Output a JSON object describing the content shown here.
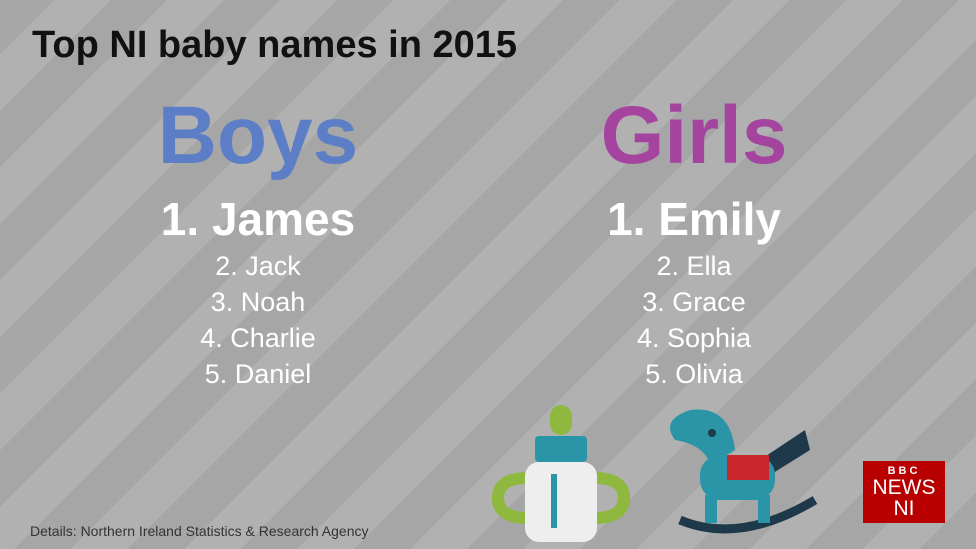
{
  "title": "Top NI baby names in 2015",
  "columns": [
    {
      "heading": "Boys",
      "names": [
        "1. James",
        "2. Jack",
        "3. Noah",
        "4. Charlie",
        "5. Daniel"
      ]
    },
    {
      "heading": "Girls",
      "names": [
        "1. Emily",
        "2. Ella",
        "3. Grace",
        "4. Sophia",
        "5. Olivia"
      ]
    }
  ],
  "source": "Details: Northern Ireland Statistics & Research Agency",
  "logo": {
    "top": "BBC",
    "middle": "NEWS",
    "bottom": "NI"
  }
}
